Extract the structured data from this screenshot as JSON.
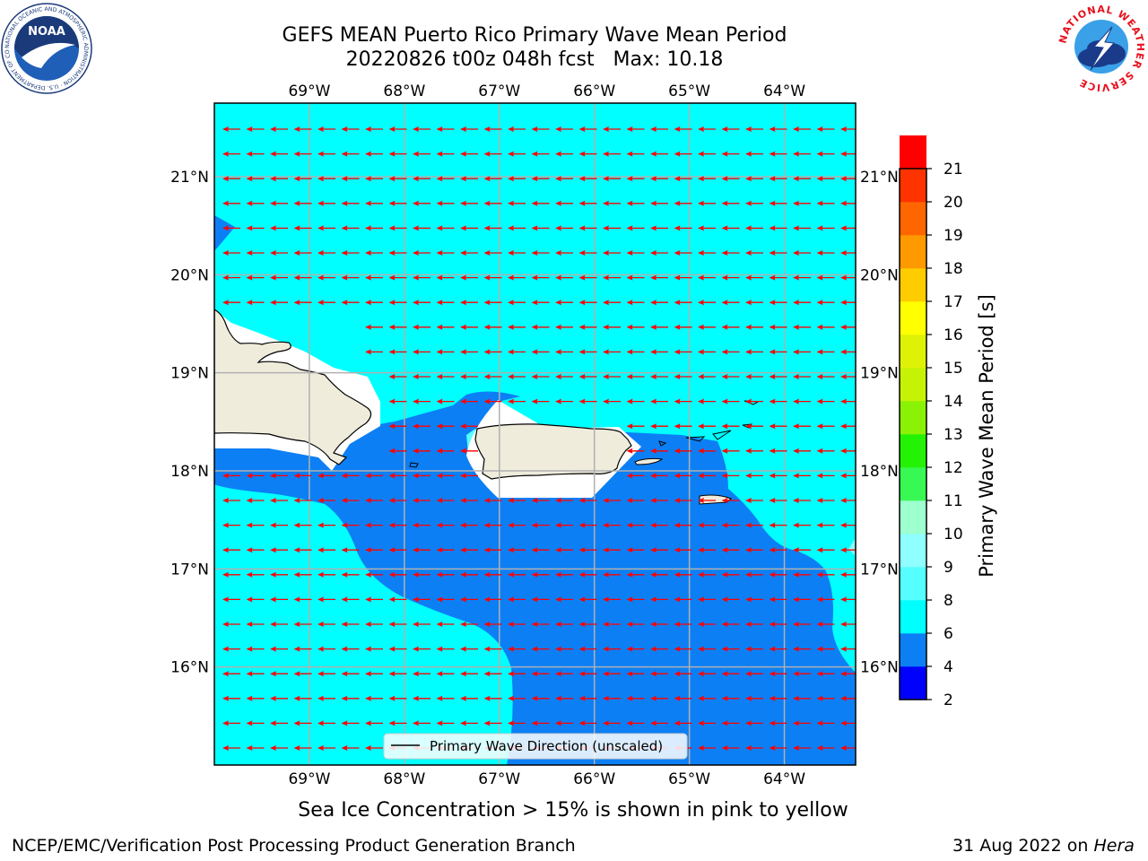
{
  "header": {
    "title_line1": "GEFS MEAN Puerto Rico Primary Wave Mean Period",
    "title_line2": "20220826 t00z 048h fcst   Max: 10.18"
  },
  "logos": {
    "left": {
      "name": "noaa-logo",
      "text": "NOAA",
      "ring_text": "NATIONAL OCEANIC AND ATMOSPHERIC ADMINISTRATION · U.S. DEPARTMENT OF COMMERCE"
    },
    "right": {
      "name": "national-weather-service-logo",
      "ring_text": "NATIONAL WEATHER SERVICE"
    }
  },
  "map": {
    "region": "Puerto Rico",
    "lon_range": [
      -70.0,
      -63.25
    ],
    "lat_range": [
      15.0,
      21.75
    ],
    "lon_ticks": [
      {
        "value": -69,
        "label": "69°W"
      },
      {
        "value": -68,
        "label": "68°W"
      },
      {
        "value": -67,
        "label": "67°W"
      },
      {
        "value": -66,
        "label": "66°W"
      },
      {
        "value": -65,
        "label": "65°W"
      },
      {
        "value": -64,
        "label": "64°W"
      }
    ],
    "lat_ticks": [
      {
        "value": 16,
        "label": "16°N"
      },
      {
        "value": 17,
        "label": "17°N"
      },
      {
        "value": 18,
        "label": "18°N"
      },
      {
        "value": 19,
        "label": "19°N"
      },
      {
        "value": 20,
        "label": "20°N"
      },
      {
        "value": 21,
        "label": "21°N"
      }
    ],
    "grid": true,
    "legend_entry": "Primary Wave Direction (unscaled)",
    "legend_placement": "lower-center",
    "arrow_direction": "westward",
    "colors": {
      "land": "#efecdc",
      "band_6_8": "#00ffff",
      "band_4_6": "#0d7ff5",
      "arrow": "#ff0000"
    }
  },
  "colorbar": {
    "label": "Primary Wave Mean Period [s]",
    "levels": [
      2,
      4,
      6,
      8,
      9,
      10,
      11,
      12,
      13,
      14,
      15,
      16,
      17,
      18,
      19,
      20,
      21
    ],
    "colors": [
      "#0000ff",
      "#0d7ff5",
      "#00ffff",
      "#56ffff",
      "#8fffff",
      "#9effcf",
      "#38f953",
      "#24f205",
      "#8af205",
      "#c5f205",
      "#ddf205",
      "#ffff00",
      "#ffcc00",
      "#ff9900",
      "#ff6600",
      "#ff3300",
      "#ff0000"
    ]
  },
  "footer": {
    "ice_note": "Sea Ice Concentration > 15% is shown in pink to yellow",
    "branch": "NCEP/EMC/Verification Post Processing Product Generation Branch",
    "date_text": "31 Aug 2022 on ",
    "machine": "Hera"
  }
}
